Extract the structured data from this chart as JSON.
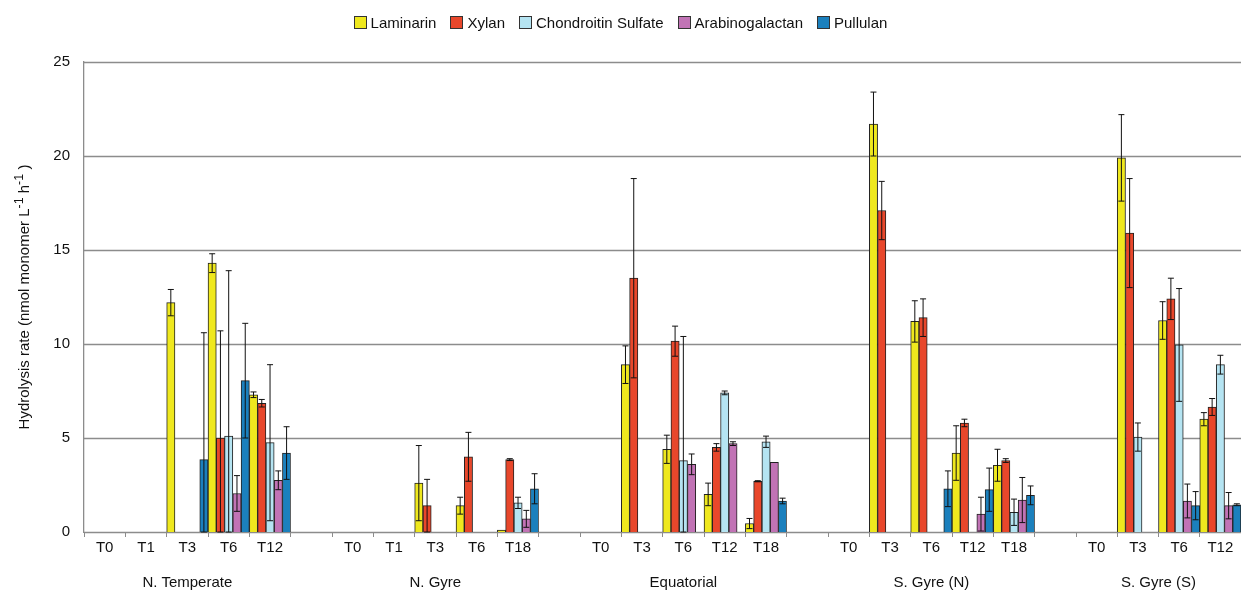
{
  "chart_data": [
    {
      "type": "bar",
      "xlabel": "N. Temperate",
      "ylabel": "Hydrolysis rate (nmol monomer L$^{-1}$ h$^{-1}$ )",
      "categories": [
        "T0",
        "T1",
        "T3",
        "T6",
        "T12"
      ],
      "ylim": [
        0,
        25
      ],
      "yticks": [
        0,
        5,
        10,
        15,
        20,
        25
      ],
      "grid": "y",
      "legend": "top",
      "series": [
        {
          "name": "Laminarin",
          "color": "#efe81e",
          "values": [
            null,
            null,
            12.2,
            14.3,
            7.3
          ],
          "errors": [
            null,
            null,
            0.7,
            0.5,
            0.15
          ]
        },
        {
          "name": "Xylan",
          "color": "#e8472b",
          "values": [
            null,
            null,
            null,
            5.0,
            6.85
          ],
          "errors": [
            null,
            null,
            null,
            [
              0,
              10.7
            ],
            0.2
          ]
        },
        {
          "name": "Chondroitin Sulfate",
          "color": "#b5e4f2",
          "values": [
            null,
            null,
            null,
            5.1,
            4.75
          ],
          "errors": [
            null,
            null,
            null,
            [
              0,
              13.9
            ],
            4.15
          ]
        },
        {
          "name": "Arabinogalactan",
          "color": "#c173b5",
          "values": [
            null,
            null,
            null,
            2.05,
            2.75
          ],
          "errors": [
            null,
            null,
            null,
            0.95,
            0.5
          ]
        },
        {
          "name": "Pullulan",
          "color": "#1b80bd",
          "values": [
            null,
            null,
            3.85,
            8.05,
            4.2
          ],
          "errors": [
            null,
            null,
            [
              0,
              10.6
            ],
            3.05,
            1.4
          ]
        }
      ]
    },
    {
      "type": "bar",
      "xlabel": "N. Gyre",
      "categories": [
        "T0",
        "T1",
        "T3",
        "T6",
        "T18"
      ],
      "ylim": [
        0,
        25
      ],
      "yticks": [
        0,
        5,
        10,
        15,
        20,
        25
      ],
      "grid": "y",
      "tick_labels": "x",
      "series": [
        {
          "color": "#efe81e",
          "values": [
            null,
            null,
            2.6,
            1.4,
            0.1
          ],
          "errors": [
            null,
            null,
            2.0,
            0.45,
            null
          ]
        },
        {
          "color": "#e8472b",
          "values": [
            null,
            null,
            1.4,
            4.0,
            3.85
          ],
          "errors": [
            null,
            null,
            1.4,
            1.3,
            0.05
          ]
        },
        {
          "color": "#b5e4f2",
          "values": [
            null,
            null,
            null,
            null,
            1.55
          ],
          "errors": [
            null,
            null,
            null,
            null,
            0.3
          ]
        },
        {
          "color": "#c173b5",
          "values": [
            null,
            null,
            null,
            null,
            0.7
          ],
          "errors": [
            null,
            null,
            null,
            null,
            0.45
          ]
        },
        {
          "color": "#1b80bd",
          "values": [
            null,
            null,
            null,
            null,
            2.3
          ],
          "errors": [
            null,
            null,
            null,
            null,
            0.8
          ]
        }
      ]
    },
    {
      "type": "bar",
      "xlabel": "Equatorial",
      "categories": [
        "T0",
        "T3",
        "T6",
        "T12",
        "T18"
      ],
      "ylim": [
        0,
        25
      ],
      "yticks": [
        0,
        5,
        10,
        15,
        20,
        25
      ],
      "grid": "y",
      "tick_labels": "x",
      "series": [
        {
          "color": "#efe81e",
          "values": [
            null,
            8.9,
            4.4,
            2.0,
            0.45
          ],
          "errors": [
            null,
            1.0,
            0.75,
            0.6,
            0.27
          ]
        },
        {
          "color": "#e8472b",
          "values": [
            null,
            13.5,
            10.15,
            4.5,
            2.7
          ],
          "errors": [
            null,
            5.3,
            0.8,
            0.2,
            0.03
          ]
        },
        {
          "color": "#b5e4f2",
          "values": [
            null,
            null,
            3.8,
            7.4,
            4.8
          ],
          "errors": [
            null,
            null,
            [
              0,
              10.4
            ],
            0.1,
            0.3
          ]
        },
        {
          "color": "#c173b5",
          "values": [
            null,
            null,
            3.6,
            4.7,
            3.7
          ],
          "errors": [
            null,
            null,
            0.55,
            0.1,
            null
          ]
        },
        {
          "color": "#1b80bd",
          "values": [
            null,
            null,
            null,
            null,
            1.65
          ],
          "errors": [
            null,
            null,
            null,
            null,
            0.15
          ]
        }
      ]
    },
    {
      "type": "bar",
      "xlabel": "S. Gyre (N)",
      "categories": [
        "T0",
        "T3",
        "T6",
        "T12",
        "T18"
      ],
      "ylim": [
        0,
        25
      ],
      "yticks": [
        0,
        5,
        10,
        15,
        20,
        25
      ],
      "grid": "y",
      "tick_labels": "x",
      "series": [
        {
          "color": "#efe81e",
          "values": [
            null,
            21.7,
            11.2,
            4.2,
            3.55
          ],
          "errors": [
            null,
            1.7,
            1.1,
            1.45,
            0.85
          ]
        },
        {
          "color": "#e8472b",
          "values": [
            null,
            17.1,
            11.4,
            5.8,
            3.8
          ],
          "errors": [
            null,
            1.55,
            1.0,
            0.2,
            0.1
          ]
        },
        {
          "color": "#b5e4f2",
          "values": [
            null,
            null,
            null,
            null,
            1.05
          ],
          "errors": [
            null,
            null,
            null,
            null,
            0.7
          ]
        },
        {
          "color": "#c173b5",
          "values": [
            null,
            null,
            null,
            0.95,
            1.7
          ],
          "errors": [
            null,
            null,
            null,
            0.9,
            1.2
          ]
        },
        {
          "color": "#1b80bd",
          "values": [
            null,
            null,
            2.3,
            2.25,
            1.95
          ],
          "errors": [
            null,
            null,
            0.95,
            1.15,
            0.5
          ]
        }
      ]
    },
    {
      "type": "bar",
      "xlabel": "S. Gyre (S)",
      "categories": [
        "T0",
        "T3",
        "T6",
        "T12"
      ],
      "ylim": [
        0,
        25
      ],
      "yticks": [
        0,
        5,
        10,
        15,
        20,
        25
      ],
      "grid": "y",
      "tick_labels": "x",
      "series": [
        {
          "color": "#efe81e",
          "values": [
            null,
            19.9,
            11.25,
            6.0
          ],
          "errors": [
            null,
            2.3,
            1.0,
            0.35
          ]
        },
        {
          "color": "#e8472b",
          "values": [
            null,
            15.9,
            12.4,
            6.65
          ],
          "errors": [
            null,
            2.9,
            1.1,
            0.45
          ]
        },
        {
          "color": "#b5e4f2",
          "values": [
            null,
            5.05,
            9.95,
            8.9
          ],
          "errors": [
            null,
            0.75,
            3.0,
            0.5
          ]
        },
        {
          "color": "#c173b5",
          "values": [
            null,
            null,
            1.65,
            1.4
          ],
          "errors": [
            null,
            null,
            0.9,
            0.7
          ]
        },
        {
          "color": "#1b80bd",
          "values": [
            null,
            null,
            1.4,
            1.45
          ],
          "errors": [
            null,
            null,
            0.75,
            0.05
          ]
        }
      ]
    }
  ]
}
